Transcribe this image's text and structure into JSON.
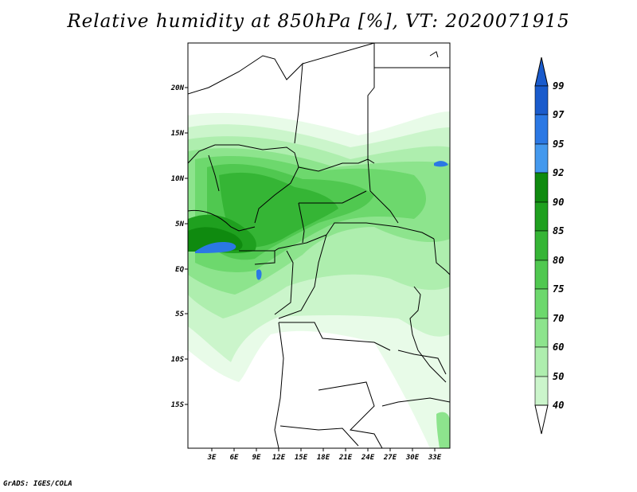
{
  "title": "Relative humidity at 850hPa [%], VT: 2020071915",
  "credit": "GrADS: IGES/COLA",
  "map": {
    "lat_ticks": [
      "20N",
      "15N",
      "10N",
      "5N",
      "EQ",
      "5S",
      "10S",
      "15S"
    ],
    "lon_ticks": [
      "3E",
      "6E",
      "9E",
      "12E",
      "15E",
      "18E",
      "21E",
      "24E",
      "27E",
      "30E",
      "33E"
    ]
  },
  "colorbar": {
    "labels": [
      "99",
      "97",
      "95",
      "92",
      "90",
      "85",
      "80",
      "75",
      "70",
      "60",
      "50",
      "40"
    ],
    "colors": [
      "#1a5bcc",
      "#2b78e4",
      "#4499ee",
      "#0f8a0f",
      "#1fa01f",
      "#35b535",
      "#50c850",
      "#6dd86d",
      "#8de48d",
      "#aeeeae",
      "#cbf5cb",
      "#e8fbe8"
    ]
  }
}
